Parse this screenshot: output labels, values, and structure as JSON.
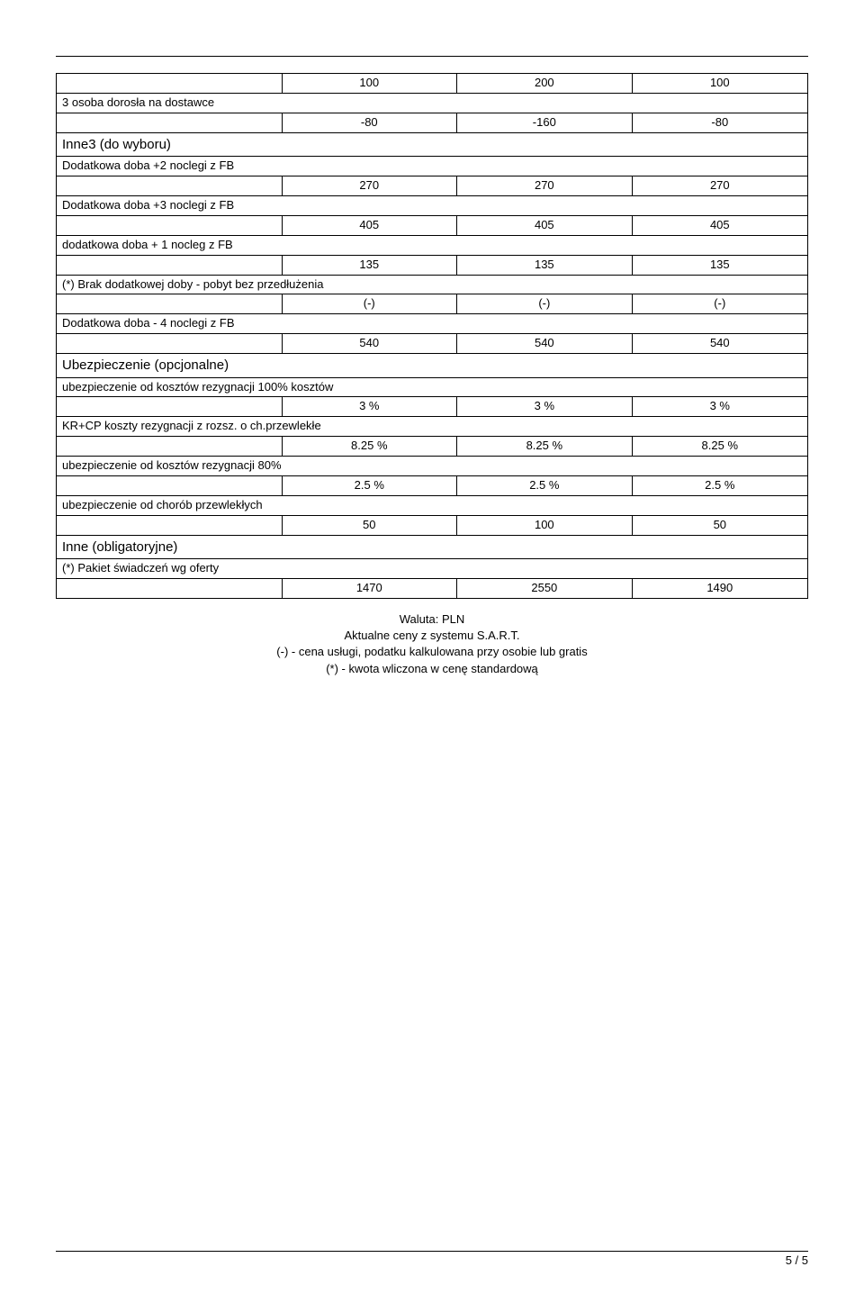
{
  "rows": [
    {
      "type": "data",
      "vals": [
        "100",
        "200",
        "100"
      ]
    },
    {
      "type": "label",
      "text": "3 osoba dorosła na dostawce"
    },
    {
      "type": "data",
      "vals": [
        "-80",
        "-160",
        "-80"
      ]
    },
    {
      "type": "section",
      "text": "Inne3 (do wyboru)"
    },
    {
      "type": "label",
      "text": "Dodatkowa doba +2 noclegi z FB"
    },
    {
      "type": "data",
      "vals": [
        "270",
        "270",
        "270"
      ]
    },
    {
      "type": "label",
      "text": "Dodatkowa doba +3 noclegi z FB"
    },
    {
      "type": "data",
      "vals": [
        "405",
        "405",
        "405"
      ]
    },
    {
      "type": "label",
      "text": "dodatkowa doba + 1 nocleg z FB"
    },
    {
      "type": "data",
      "vals": [
        "135",
        "135",
        "135"
      ]
    },
    {
      "type": "label",
      "text": "(*) Brak dodatkowej doby - pobyt bez przedłużenia"
    },
    {
      "type": "data",
      "vals": [
        "(-)",
        "(-)",
        "(-)"
      ]
    },
    {
      "type": "label",
      "text": "Dodatkowa doba - 4 noclegi z FB"
    },
    {
      "type": "data",
      "vals": [
        "540",
        "540",
        "540"
      ]
    },
    {
      "type": "section",
      "text": "Ubezpieczenie (opcjonalne)"
    },
    {
      "type": "label",
      "text": "ubezpieczenie od kosztów rezygnacji 100% kosztów"
    },
    {
      "type": "data",
      "vals": [
        "3 %",
        "3 %",
        "3 %"
      ]
    },
    {
      "type": "label",
      "text": "KR+CP koszty rezygnacji z rozsz. o ch.przewlekłe"
    },
    {
      "type": "data",
      "vals": [
        "8.25 %",
        "8.25 %",
        "8.25 %"
      ]
    },
    {
      "type": "label",
      "text": "ubezpieczenie od kosztów rezygnacji 80%"
    },
    {
      "type": "data",
      "vals": [
        "2.5 %",
        "2.5 %",
        "2.5 %"
      ]
    },
    {
      "type": "label",
      "text": "ubezpieczenie od chorób przewlekłych"
    },
    {
      "type": "data",
      "vals": [
        "50",
        "100",
        "50"
      ]
    },
    {
      "type": "section",
      "text": "Inne (obligatoryjne)"
    },
    {
      "type": "label",
      "text": "(*) Pakiet świadczeń wg oferty"
    },
    {
      "type": "data",
      "vals": [
        "1470",
        "2550",
        "1490"
      ]
    }
  ],
  "notes": [
    "Waluta: PLN",
    "Aktualne ceny z systemu S.A.R.T.",
    "(-) - cena usługi, podatku kalkulowana przy osobie lub gratis",
    "(*) - kwota wliczona w cenę standardową"
  ],
  "page_number": "5 / 5"
}
